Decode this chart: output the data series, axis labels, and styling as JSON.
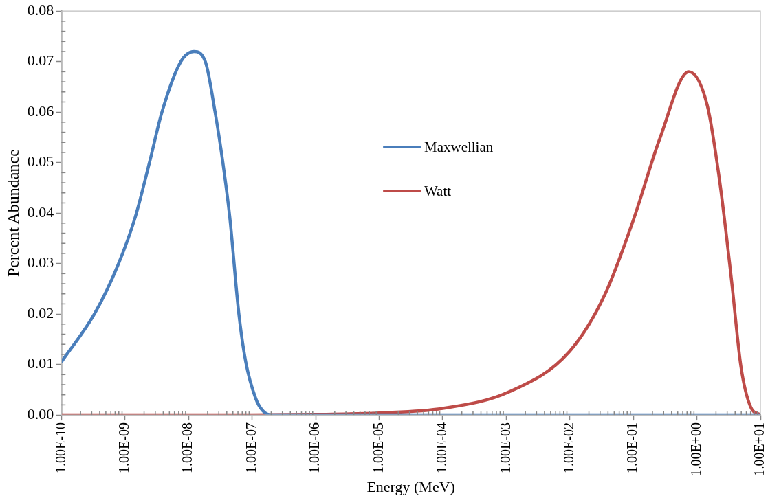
{
  "chart_data": {
    "type": "line",
    "xlabel": "Energy (MeV)",
    "ylabel": "Percent Abundance",
    "log": "x",
    "grid": false,
    "legend": "center",
    "marker": "none",
    "line_style": "solid",
    "xlim": [
      1e-10,
      10
    ],
    "xticks": [
      {
        "value": 1e-10,
        "label": "1.00E-10"
      },
      {
        "value": 1e-09,
        "label": "1.00E-09"
      },
      {
        "value": 1e-08,
        "label": "1.00E-08"
      },
      {
        "value": 1e-07,
        "label": "1.00E-07"
      },
      {
        "value": 1e-06,
        "label": "1.00E-06"
      },
      {
        "value": 1e-05,
        "label": "1.00E-05"
      },
      {
        "value": 0.0001,
        "label": "1.00E-04"
      },
      {
        "value": 0.001,
        "label": "1.00E-03"
      },
      {
        "value": 0.01,
        "label": "1.00E-02"
      },
      {
        "value": 0.1,
        "label": "1.00E-01"
      },
      {
        "value": 1,
        "label": "1.00E+00"
      },
      {
        "value": 10,
        "label": "1.00E+01"
      }
    ],
    "ylim": [
      0,
      0.08
    ],
    "yticks": [
      {
        "value": 0,
        "label": "0.00"
      },
      {
        "value": 0.01,
        "label": "0.01"
      },
      {
        "value": 0.02,
        "label": "0.02"
      },
      {
        "value": 0.03,
        "label": "0.03"
      },
      {
        "value": 0.04,
        "label": "0.04"
      },
      {
        "value": 0.05,
        "label": "0.05"
      },
      {
        "value": 0.06,
        "label": "0.06"
      },
      {
        "value": 0.07,
        "label": "0.07"
      },
      {
        "value": 0.08,
        "label": "0.08"
      }
    ],
    "series": [
      {
        "name": "Maxwellian",
        "color": "#4a7ebb",
        "x": [
          1e-10,
          3.37e-10,
          7.76e-10,
          1.46e-09,
          2.43e-09,
          3.82e-09,
          7.57e-09,
          1.22e-08,
          1.84e-08,
          2.62e-08,
          3.47e-08,
          4.45e-08,
          6.18e-08,
          7.96e-08,
          1.14e-07,
          1.46e-07,
          2.04e-07,
          1e-06,
          10
        ],
        "values": [
          0.0105,
          0.0202,
          0.0297,
          0.0393,
          0.05,
          0.06,
          0.07,
          0.072,
          0.07,
          0.06,
          0.05,
          0.0393,
          0.0202,
          0.0105,
          0.0033,
          0.0009,
          0,
          0,
          0
        ]
      },
      {
        "name": "Watt",
        "color": "#be4b48",
        "x": [
          1e-10,
          1e-07,
          1e-06,
          1e-05,
          0.0001,
          0.00112,
          0.00977,
          0.0355,
          0.1,
          0.262,
          0.748,
          1.46,
          2.28,
          3.51,
          4.95,
          7.01,
          10
        ],
        "values": [
          0,
          0,
          0.0001,
          0.0004,
          0.0013,
          0.0046,
          0.0125,
          0.0238,
          0.0386,
          0.0548,
          0.068,
          0.0613,
          0.0464,
          0.0267,
          0.0095,
          0.0016,
          0
        ]
      }
    ]
  }
}
